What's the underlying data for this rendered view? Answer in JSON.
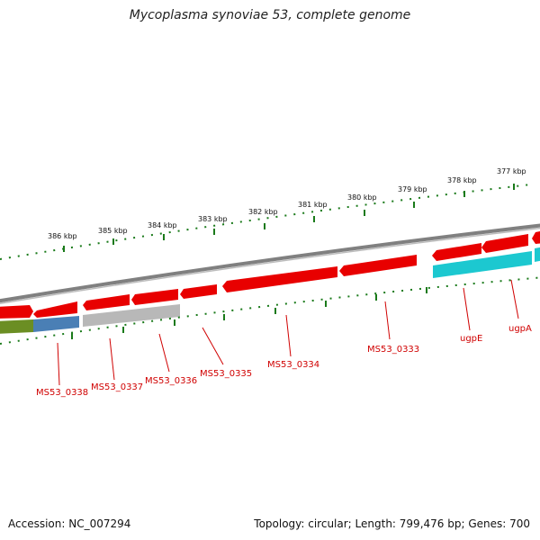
{
  "title": "Mycoplasma synoviae 53, complete genome",
  "footer": {
    "accession": "Accession: NC_007294",
    "summary": "Topology: circular; Length: 799,476 bp; Genes: 700"
  },
  "ruler_labels": [
    "386 kbp",
    "385 kbp",
    "384 kbp",
    "383 kbp",
    "382 kbp",
    "381 kbp",
    "380 kbp",
    "379 kbp",
    "378 kbp",
    "377 kbp"
  ],
  "gene_labels": [
    "MS53_0338",
    "MS53_0337",
    "MS53_0336",
    "MS53_0335",
    "MS53_0334",
    "MS53_0333",
    "ugpE",
    "ugpA"
  ],
  "colors": {
    "backbone": "#808080",
    "forward_cds": "#e80000",
    "cog_olive": "#6b8e23",
    "cog_steelblue": "#4a7fb5",
    "cog_gray": "#b8b8b8",
    "cog_cyan": "#1cc8d0",
    "ticks": "#1a7a1a",
    "label_text": "#d00000"
  }
}
